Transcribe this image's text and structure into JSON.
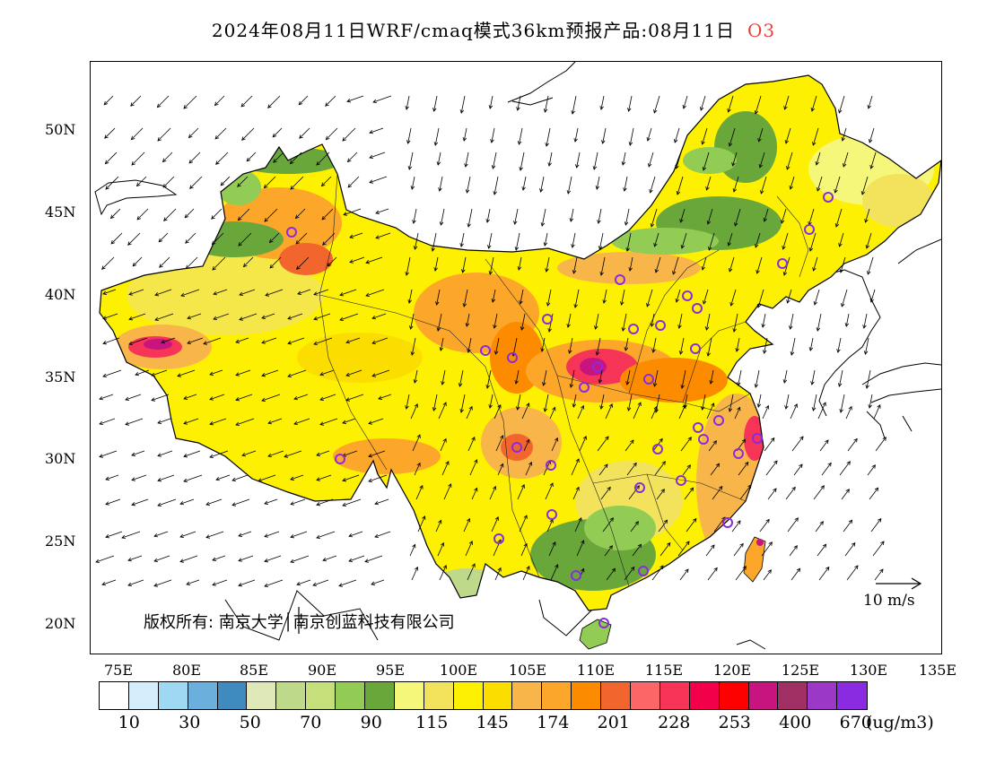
{
  "title": {
    "text": "2024年08月11日WRF/cmaq模式36km预报产品:08月11日",
    "species": "O3",
    "species_color": "#e8413b"
  },
  "map": {
    "lat_labels": [
      "50N",
      "45N",
      "40N",
      "35N",
      "30N",
      "25N",
      "20N"
    ],
    "lon_labels": [
      "75E",
      "80E",
      "85E",
      "90E",
      "95E",
      "100E",
      "105E",
      "110E",
      "115E",
      "120E",
      "125E",
      "130E",
      "135E"
    ],
    "copyright": "版权所有: 南京大学│南京创蓝科技有限公司",
    "wind_reference": "10 m/s"
  },
  "legend": {
    "unit": "(ug/m3)",
    "labels": [
      "10",
      "30",
      "50",
      "70",
      "90",
      "115",
      "145",
      "174",
      "201",
      "228",
      "253",
      "400",
      "670"
    ],
    "colors": [
      "#ffffff",
      "#d3edfb",
      "#9fd8f3",
      "#6bb0dd",
      "#3f8bbf",
      "#dfe9b8",
      "#bfd98a",
      "#c5e07a",
      "#93cc54",
      "#6aa73b",
      "#f5f77a",
      "#f3e35c",
      "#fdf000",
      "#fbde00",
      "#f8b64a",
      "#fca62a",
      "#fd8b00",
      "#f2652d",
      "#fd6666",
      "#f53457",
      "#f20049",
      "#fd0000",
      "#c8147f",
      "#a02f63",
      "#9b38c8",
      "#8a2be2"
    ]
  }
}
